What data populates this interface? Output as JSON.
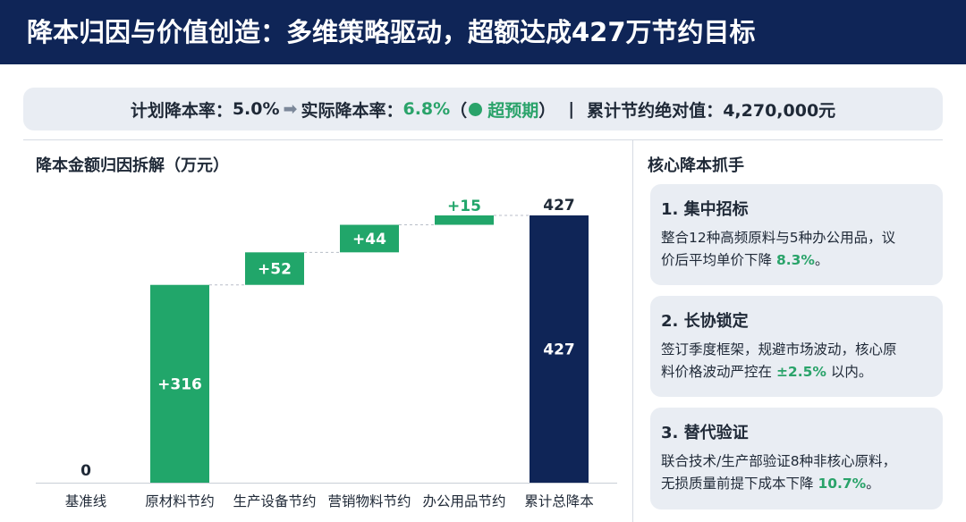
{
  "header": {
    "title": "降本归因与价值创造：多维策略驱动，超额达成427万节约目标"
  },
  "summary": {
    "plan_label": "计划降本率：",
    "plan_value": "5.0%",
    "arrow": "➡",
    "actual_label": "实际降本率：",
    "actual_value": "6.8%",
    "paren_open": "（",
    "badge_text": "超预期",
    "paren_close": "）",
    "separator": "|",
    "total_label": "累计节约绝对值：",
    "total_value": "4,270,000元"
  },
  "chart_data": {
    "type": "bar",
    "subtype": "waterfall",
    "title": "降本金额归因拆解（万元）",
    "categories": [
      "基准线",
      "原材料节约",
      "生产设备节约",
      "营销物料节约",
      "办公用品节约",
      "累计总降本"
    ],
    "values": [
      0,
      316,
      52,
      44,
      15,
      427
    ],
    "bar_kind": [
      "base",
      "increase",
      "increase",
      "increase",
      "increase",
      "total"
    ],
    "labels": [
      "0",
      "+316",
      "+52",
      "+44",
      "+15",
      "427"
    ],
    "total_top_label": "427",
    "ylim": [
      0,
      427
    ],
    "colors": {
      "increase": "#21a66a",
      "total": "#0f2557",
      "connector": "#b8bec8"
    }
  },
  "side": {
    "title": "核心降本抓手",
    "cards": [
      {
        "title": "1. 集中招标",
        "line1": "整合12种高频原料与5种办公用品，议",
        "line2_pre": "价后平均单价下降 ",
        "line2_hl": "8.3%",
        "line2_post": "。"
      },
      {
        "title": "2. 长协锁定",
        "line1": "签订季度框架，规避市场波动，核心原",
        "line2_pre": "料价格波动严控在 ",
        "line2_hl": "±2.5%",
        "line2_post": " 以内。"
      },
      {
        "title": "3. 替代验证",
        "line1": "联合技术/生产部验证8种非核心原料，",
        "line2_pre": "无损质量前提下成本下降 ",
        "line2_hl": "10.7%",
        "line2_post": "。"
      }
    ]
  }
}
